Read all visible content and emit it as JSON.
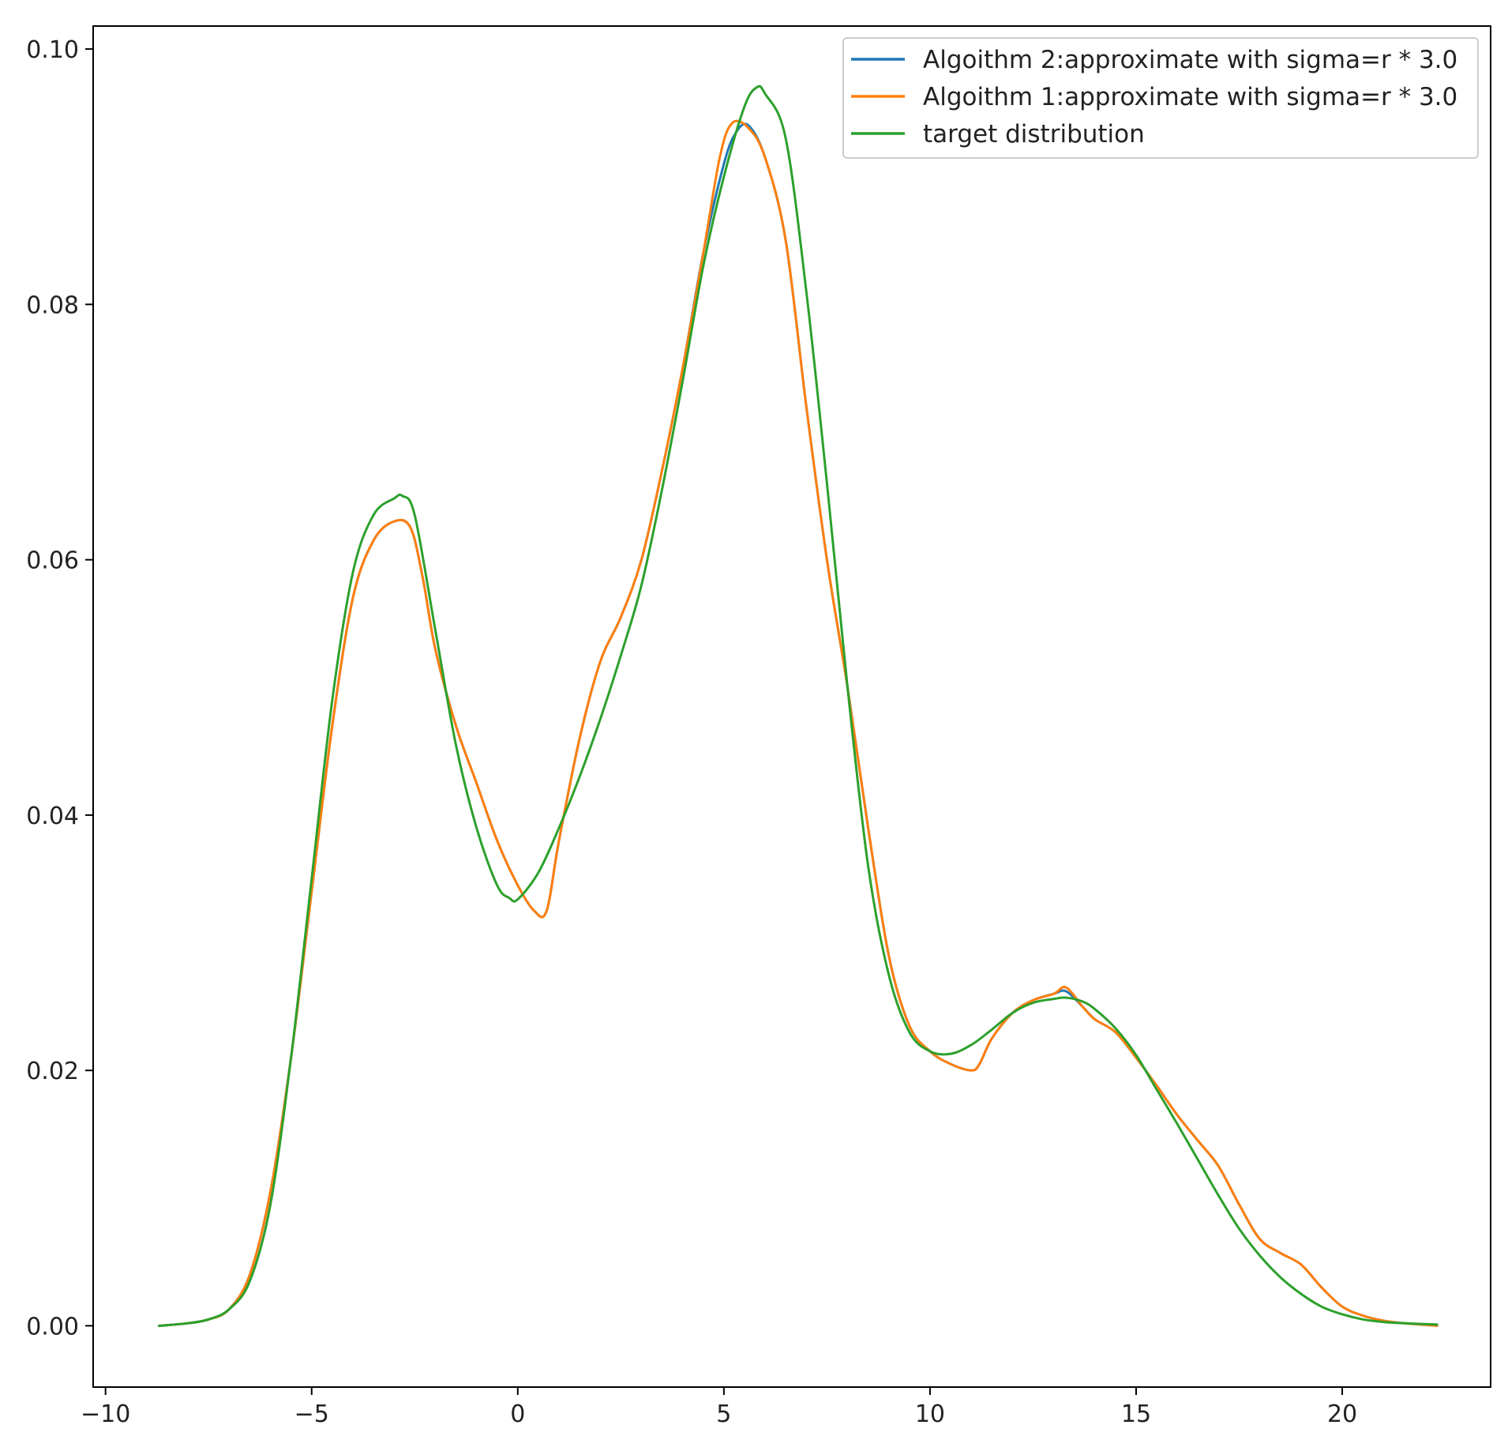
{
  "chart_data": {
    "type": "line",
    "title": "",
    "xlabel": "",
    "ylabel": "",
    "xlim": [
      -10.3,
      23.6
    ],
    "ylim": [
      -0.0048,
      0.1018
    ],
    "x_ticks": [
      -10,
      -5,
      0,
      5,
      10,
      15,
      20
    ],
    "x_tick_labels": [
      "−10",
      "−5",
      "0",
      "5",
      "10",
      "15",
      "20"
    ],
    "y_ticks": [
      0.0,
      0.02,
      0.04,
      0.06,
      0.08,
      0.1
    ],
    "y_tick_labels": [
      "0.00",
      "0.02",
      "0.04",
      "0.06",
      "0.08",
      "0.10"
    ],
    "grid": false,
    "legend_position": "top-right",
    "series": [
      {
        "name": "Algoithm 2:approximate with sigma=r * 3.0",
        "color": "#1f77b4",
        "x": [
          -8.7,
          -8.0,
          -7.5,
          -7.0,
          -6.5,
          -6.0,
          -5.5,
          -5.0,
          -4.5,
          -4.0,
          -3.5,
          -3.0,
          -2.6,
          -2.3,
          -2.0,
          -1.5,
          -1.0,
          -0.5,
          0.0,
          0.4,
          0.7,
          1.0,
          1.5,
          2.0,
          2.5,
          3.0,
          3.5,
          4.0,
          4.5,
          5.0,
          5.3,
          5.6,
          6.0,
          6.5,
          7.0,
          7.5,
          8.0,
          8.5,
          9.0,
          9.5,
          10.0,
          10.5,
          11.0,
          11.2,
          11.5,
          12.0,
          12.5,
          13.0,
          13.3,
          13.7,
          14.0,
          14.5,
          15.0,
          15.5,
          16.0,
          16.5,
          17.0,
          17.5,
          18.0,
          18.5,
          19.0,
          19.5,
          20.0,
          20.5,
          21.0,
          21.5,
          22.3
        ],
        "y": [
          0.0,
          0.0002,
          0.0005,
          0.0013,
          0.004,
          0.0105,
          0.021,
          0.034,
          0.047,
          0.057,
          0.0615,
          0.063,
          0.0625,
          0.0585,
          0.053,
          0.047,
          0.0425,
          0.038,
          0.0345,
          0.0325,
          0.0325,
          0.038,
          0.046,
          0.052,
          0.0555,
          0.06,
          0.067,
          0.075,
          0.084,
          0.091,
          0.0935,
          0.094,
          0.0915,
          0.085,
          0.072,
          0.06,
          0.05,
          0.039,
          0.029,
          0.0235,
          0.0215,
          0.0205,
          0.02,
          0.0205,
          0.0225,
          0.0245,
          0.0255,
          0.026,
          0.0262,
          0.025,
          0.024,
          0.023,
          0.021,
          0.0188,
          0.0165,
          0.0145,
          0.0125,
          0.0095,
          0.0068,
          0.0057,
          0.0048,
          0.003,
          0.0015,
          0.0008,
          0.0004,
          0.0002,
          0.0
        ]
      },
      {
        "name": "Algoithm 1:approximate with sigma=r * 3.0",
        "color": "#ff7f0e",
        "x": [
          -8.7,
          -8.0,
          -7.5,
          -7.0,
          -6.5,
          -6.0,
          -5.5,
          -5.0,
          -4.5,
          -4.0,
          -3.5,
          -3.0,
          -2.6,
          -2.3,
          -2.0,
          -1.5,
          -1.0,
          -0.5,
          0.0,
          0.4,
          0.7,
          1.0,
          1.5,
          2.0,
          2.5,
          3.0,
          3.5,
          4.0,
          4.5,
          4.9,
          5.2,
          5.6,
          6.0,
          6.5,
          7.0,
          7.5,
          8.0,
          8.5,
          9.0,
          9.5,
          10.0,
          10.5,
          11.0,
          11.2,
          11.5,
          12.0,
          12.5,
          13.0,
          13.3,
          13.7,
          14.0,
          14.5,
          15.0,
          15.5,
          16.0,
          16.5,
          17.0,
          17.5,
          18.0,
          18.5,
          19.0,
          19.5,
          20.0,
          20.5,
          21.0,
          21.5,
          22.3
        ],
        "y": [
          0.0,
          0.0002,
          0.0005,
          0.0013,
          0.004,
          0.0105,
          0.021,
          0.034,
          0.047,
          0.057,
          0.0615,
          0.063,
          0.0625,
          0.0585,
          0.053,
          0.047,
          0.0425,
          0.038,
          0.0345,
          0.0325,
          0.0325,
          0.038,
          0.046,
          0.052,
          0.0555,
          0.06,
          0.067,
          0.075,
          0.084,
          0.0915,
          0.0942,
          0.0938,
          0.0915,
          0.085,
          0.072,
          0.06,
          0.05,
          0.039,
          0.029,
          0.0235,
          0.0215,
          0.0205,
          0.02,
          0.0205,
          0.0225,
          0.0245,
          0.0255,
          0.026,
          0.0265,
          0.025,
          0.024,
          0.023,
          0.021,
          0.0188,
          0.0165,
          0.0145,
          0.0125,
          0.0095,
          0.0068,
          0.0057,
          0.0048,
          0.003,
          0.0015,
          0.0008,
          0.0004,
          0.0002,
          0.0
        ]
      },
      {
        "name": "target distribution",
        "color": "#2ca02c",
        "x": [
          -8.7,
          -8.0,
          -7.5,
          -7.0,
          -6.5,
          -6.0,
          -5.5,
          -5.0,
          -4.5,
          -4.0,
          -3.5,
          -3.0,
          -2.8,
          -2.5,
          -2.0,
          -1.5,
          -1.0,
          -0.5,
          -0.2,
          0.0,
          0.5,
          1.0,
          1.5,
          2.0,
          2.5,
          3.0,
          3.5,
          4.0,
          4.5,
          5.0,
          5.5,
          5.8,
          6.0,
          6.5,
          7.0,
          7.5,
          8.0,
          8.5,
          9.0,
          9.5,
          10.0,
          10.5,
          11.0,
          11.5,
          12.0,
          12.5,
          13.0,
          13.3,
          13.7,
          14.0,
          14.5,
          15.0,
          15.5,
          16.0,
          16.5,
          17.0,
          17.5,
          18.0,
          18.5,
          19.0,
          19.5,
          20.0,
          20.5,
          21.0,
          21.5,
          22.3
        ],
        "y": [
          0.0,
          0.0002,
          0.0005,
          0.0013,
          0.0035,
          0.0095,
          0.021,
          0.035,
          0.049,
          0.059,
          0.0635,
          0.0648,
          0.065,
          0.0635,
          0.0545,
          0.0455,
          0.039,
          0.0345,
          0.0335,
          0.0334,
          0.0355,
          0.039,
          0.043,
          0.0475,
          0.0525,
          0.058,
          0.0655,
          0.074,
          0.083,
          0.09,
          0.0955,
          0.097,
          0.0965,
          0.093,
          0.081,
          0.066,
          0.05,
          0.036,
          0.0275,
          0.023,
          0.0215,
          0.0213,
          0.022,
          0.0232,
          0.0245,
          0.0253,
          0.0256,
          0.0257,
          0.0254,
          0.0248,
          0.0233,
          0.0212,
          0.0185,
          0.0158,
          0.013,
          0.0102,
          0.0076,
          0.0055,
          0.0038,
          0.0025,
          0.0015,
          0.0009,
          0.0005,
          0.0003,
          0.0002,
          0.0001
        ]
      }
    ]
  }
}
